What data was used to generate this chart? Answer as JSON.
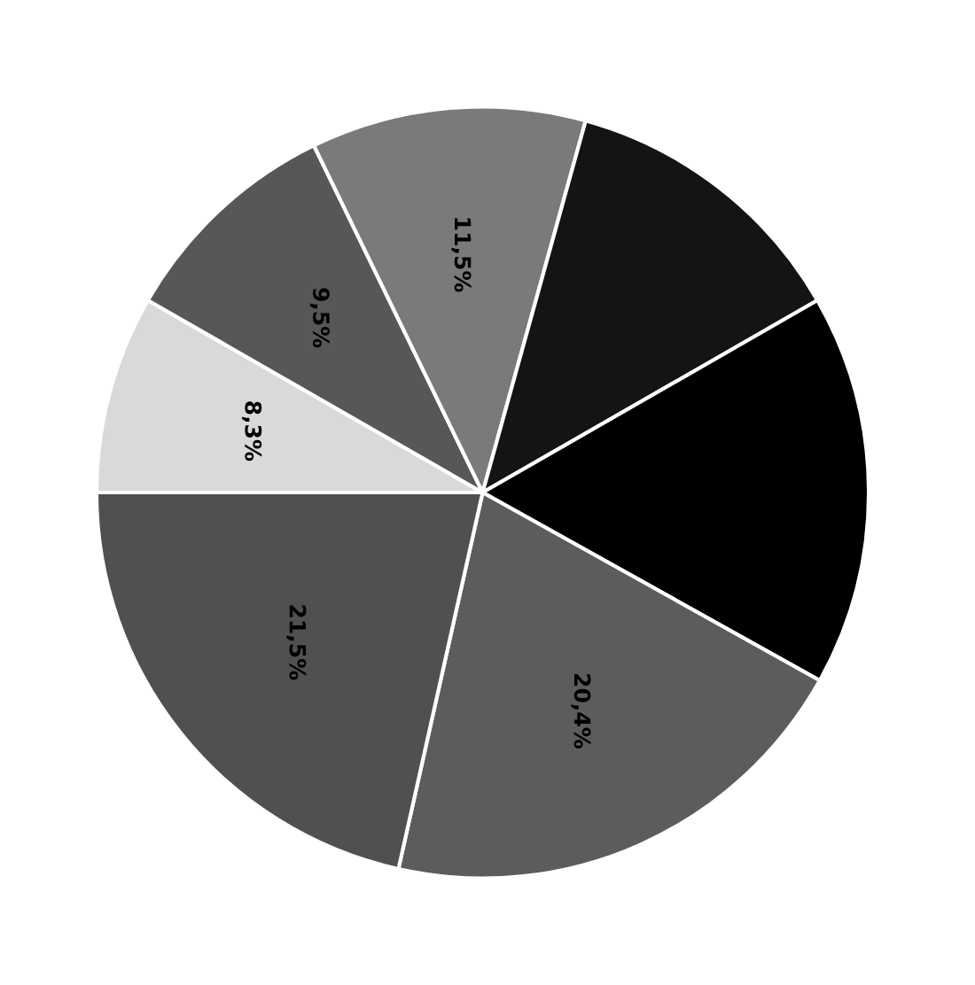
{
  "chart_data": {
    "type": "pie",
    "categories": [
      null,
      null,
      null,
      null,
      null,
      null,
      null
    ],
    "values": [
      8.3,
      9.5,
      11.5,
      12.4,
      16.4,
      20.4,
      21.5
    ],
    "colors": [
      "#d9d9d9",
      "#575757",
      "#7a7a7a",
      "#141414",
      "#000000",
      "#5c5c5c",
      "#505050"
    ],
    "value_labels": [
      "8,3%",
      "9,5%",
      "11,5%",
      null,
      null,
      "20,4%",
      "21,5%"
    ]
  }
}
